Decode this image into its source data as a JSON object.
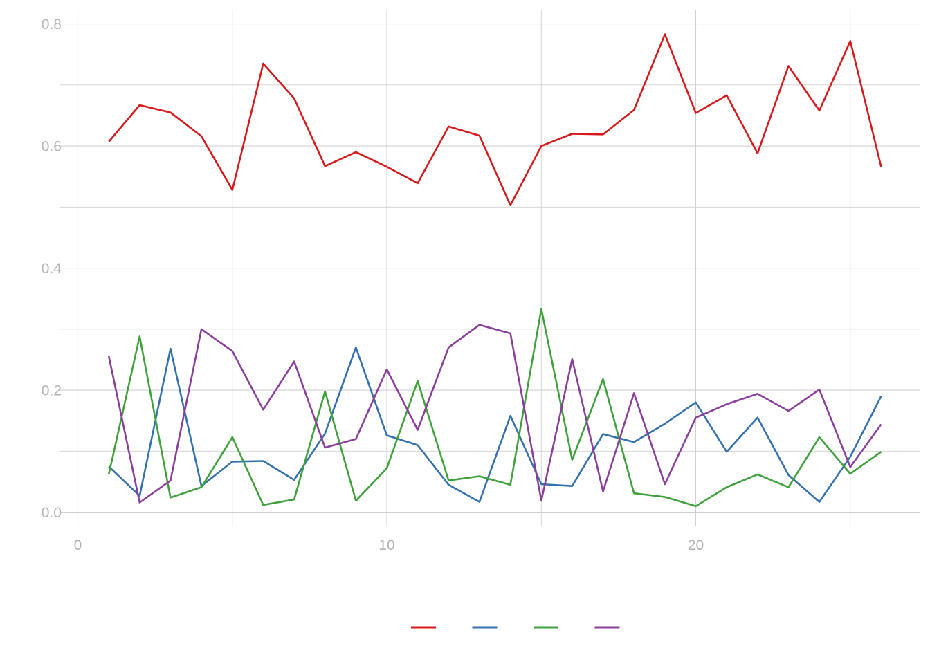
{
  "chart_data": {
    "type": "line",
    "title": "",
    "xlabel": "",
    "ylabel": "",
    "xlim": [
      0,
      27
    ],
    "ylim": [
      0,
      0.8
    ],
    "x_ticks": [
      0,
      10,
      20
    ],
    "x_tick_labels": [
      "0",
      "10",
      "20"
    ],
    "y_ticks": [
      0,
      0.2,
      0.4,
      0.6,
      0.8
    ],
    "y_tick_labels": [
      "0.0",
      "0.2",
      "0.4",
      "0.6",
      "0.8"
    ],
    "grid": true,
    "legend_position": "bottom",
    "x": [
      1,
      2,
      3,
      4,
      5,
      6,
      7,
      8,
      9,
      10,
      11,
      12,
      13,
      14,
      15,
      16,
      17,
      18,
      19,
      20,
      21,
      22,
      23,
      24,
      25,
      26
    ],
    "series": [
      {
        "color": "#d7191c",
        "values": [
          0.607,
          0.667,
          0.655,
          0.616,
          0.528,
          0.735,
          0.678,
          0.567,
          0.59,
          0.566,
          0.539,
          0.632,
          0.617,
          0.503,
          0.6,
          0.62,
          0.619,
          0.659,
          0.783,
          0.654,
          0.683,
          0.588,
          0.731,
          0.658,
          0.772,
          0.566
        ]
      },
      {
        "color": "#3470ad",
        "values": [
          0.075,
          0.027,
          0.268,
          0.043,
          0.083,
          0.084,
          0.053,
          0.129,
          0.27,
          0.126,
          0.11,
          0.045,
          0.017,
          0.158,
          0.046,
          0.043,
          0.128,
          0.115,
          0.145,
          0.18,
          0.099,
          0.155,
          0.061,
          0.017,
          0.091,
          0.19
        ]
      },
      {
        "color": "#3fa13b",
        "values": [
          0.062,
          0.288,
          0.024,
          0.041,
          0.123,
          0.012,
          0.021,
          0.198,
          0.019,
          0.072,
          0.215,
          0.052,
          0.059,
          0.045,
          0.333,
          0.086,
          0.218,
          0.031,
          0.025,
          0.01,
          0.041,
          0.062,
          0.041,
          0.123,
          0.063,
          0.099
        ]
      },
      {
        "color": "#8a3f9a",
        "values": [
          0.256,
          0.016,
          0.052,
          0.3,
          0.264,
          0.168,
          0.247,
          0.106,
          0.12,
          0.234,
          0.135,
          0.27,
          0.307,
          0.293,
          0.019,
          0.251,
          0.034,
          0.195,
          0.046,
          0.155,
          0.177,
          0.194,
          0.166,
          0.201,
          0.074,
          0.144
        ]
      }
    ]
  }
}
